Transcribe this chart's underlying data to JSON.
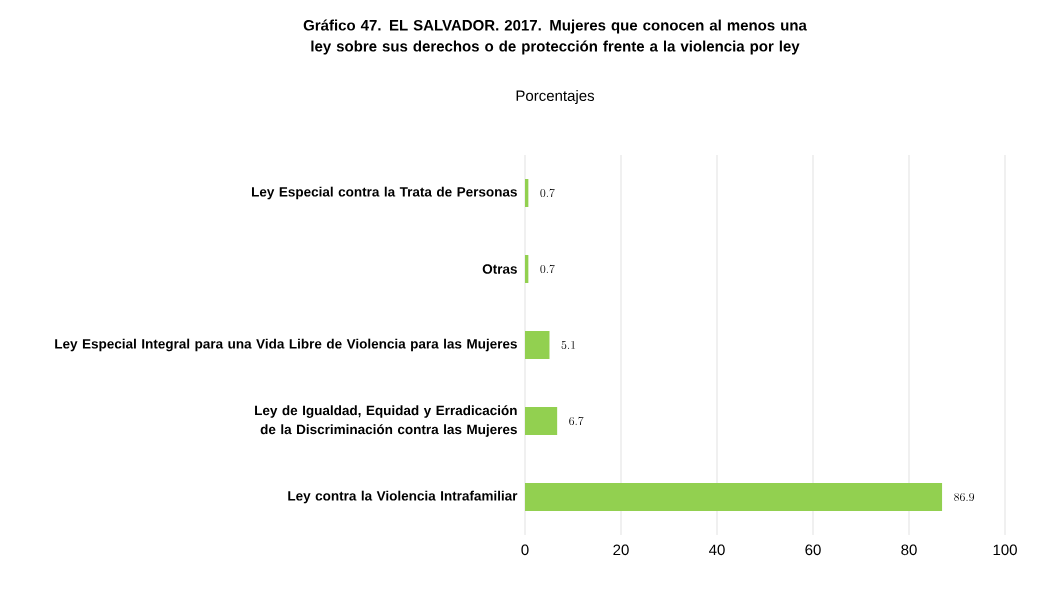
{
  "chart_data": {
    "type": "bar",
    "orientation": "horizontal",
    "title": "Gráfico 47. EL SALVADOR. 2017. Mujeres que conocen al menos una ley sobre sus derechos o de protección frente a la violencia por ley",
    "subtitle": "Porcentajes",
    "categories": [
      "Ley Especial contra la Trata de Personas",
      "Otras",
      "Ley Especial Integral para una Vida Libre de Violencia para las Mujeres",
      "Ley de Igualdad, Equidad y Erradicación de la Discriminación contra las Mujeres",
      "Ley contra la Violencia Intrafamiliar"
    ],
    "values": [
      0.7,
      0.7,
      5.1,
      6.7,
      86.9
    ],
    "color": "#92d050",
    "xlim": [
      0,
      100
    ],
    "xticks": [
      0,
      20,
      40,
      60,
      80,
      100
    ],
    "grid": "x",
    "data_labels": true
  }
}
